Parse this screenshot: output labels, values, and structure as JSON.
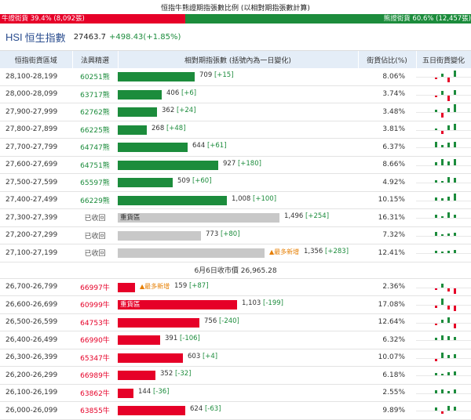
{
  "title": "恒指牛熊證期指張數比例 (以相對期指張數計算)",
  "ratio": {
    "bull_label": "牛證街貨 39.4% (8,092張)",
    "bull_pct": 39.4,
    "bear_label": "熊證街貨 60.6% (12,457張)"
  },
  "index": {
    "code": "HSI",
    "name": "恒生指數",
    "price": "27463.7",
    "change": "+498.43(+1.85%)"
  },
  "headers": [
    "恒指街貨區域",
    "法興精選",
    "相對期指張數 (括號內為一日變化)",
    "街貨佔比(%)",
    "五日街貨變化"
  ],
  "colors": {
    "bull": "#e60028",
    "bear": "#1c8c3c",
    "recovered": "#c8c8c8",
    "tag": "#e67e00"
  },
  "max_contracts": 1496,
  "bear_rows": [
    {
      "range": "28,100-28,199",
      "code": "60251熊",
      "value": 709,
      "change": "[+15]",
      "pct": "8.06%",
      "spark": [
        0,
        -2,
        4,
        -6,
        8
      ]
    },
    {
      "range": "28,000-28,099",
      "code": "63717熊",
      "value": 406,
      "change": "[+6]",
      "pct": "3.74%",
      "spark": [
        0,
        -2,
        5,
        -7,
        6
      ]
    },
    {
      "range": "27,900-27,999",
      "code": "62762熊",
      "value": 362,
      "change": "[+24]",
      "pct": "3.48%",
      "spark": [
        0,
        3,
        -6,
        5,
        10
      ]
    },
    {
      "range": "27,800-27,899",
      "code": "66225熊",
      "value": 268,
      "change": "[+48]",
      "pct": "3.81%",
      "spark": [
        0,
        2,
        -4,
        6,
        8
      ]
    },
    {
      "range": "27,700-27,799",
      "code": "64747熊",
      "value": 644,
      "change": "[+61]",
      "pct": "6.37%",
      "spark": [
        0,
        7,
        3,
        6,
        7
      ]
    },
    {
      "range": "27,600-27,699",
      "code": "64751熊",
      "value": 927,
      "change": "[+180]",
      "pct": "8.66%",
      "spark": [
        0,
        4,
        8,
        5,
        8
      ]
    },
    {
      "range": "27,500-27,599",
      "code": "65597熊",
      "value": 509,
      "change": "[+60]",
      "pct": "4.92%",
      "spark": [
        0,
        3,
        2,
        7,
        6
      ]
    },
    {
      "range": "27,400-27,499",
      "code": "66229熊",
      "value": 1008,
      "change": "[+100]",
      "pct": "10.15%",
      "spark": [
        0,
        4,
        3,
        5,
        9
      ]
    }
  ],
  "recovered_rows": [
    {
      "range": "27,300-27,399",
      "code": "已收回",
      "value": 1496,
      "change": "[+254]",
      "pct": "16.31%",
      "label": "重貨區",
      "spark": [
        0,
        4,
        2,
        7,
        4
      ]
    },
    {
      "range": "27,200-27,299",
      "code": "已收回",
      "value": 773,
      "change": "[+80]",
      "pct": "7.32%",
      "spark": [
        0,
        5,
        2,
        3,
        4
      ]
    },
    {
      "range": "27,100-27,199",
      "code": "已收回",
      "value": 1356,
      "change": "[+283]",
      "pct": "12.41%",
      "tag": "最多新增",
      "spark": [
        0,
        3,
        2,
        3,
        4
      ]
    }
  ],
  "separator": "6月6日收市價 26,965.28",
  "bull_rows": [
    {
      "range": "26,700-26,799",
      "code": "66997牛",
      "value": 159,
      "change": "[+87]",
      "pct": "2.36%",
      "tag": "最多新增",
      "spark": [
        0,
        -2,
        5,
        -4,
        -7
      ]
    },
    {
      "range": "26,600-26,699",
      "code": "60999牛",
      "value": 1103,
      "change": "[-199]",
      "pct": "17.08%",
      "label": "重貨區",
      "spark": [
        0,
        -3,
        8,
        -5,
        -7
      ]
    },
    {
      "range": "26,500-26,599",
      "code": "64753牛",
      "value": 756,
      "change": "[-240]",
      "pct": "12.64%",
      "spark": [
        0,
        -2,
        4,
        7,
        -6
      ]
    },
    {
      "range": "26,400-26,499",
      "code": "66990牛",
      "value": 391,
      "change": "[-106]",
      "pct": "6.32%",
      "spark": [
        0,
        3,
        6,
        5,
        4
      ]
    },
    {
      "range": "26,300-26,399",
      "code": "65347牛",
      "value": 603,
      "change": "[+4]",
      "pct": "10.07%",
      "spark": [
        0,
        -3,
        7,
        4,
        5
      ]
    },
    {
      "range": "26,200-26,299",
      "code": "66989牛",
      "value": 352,
      "change": "[-32]",
      "pct": "6.18%",
      "spark": [
        0,
        3,
        2,
        4,
        5
      ]
    },
    {
      "range": "26,100-26,199",
      "code": "63862牛",
      "value": 144,
      "change": "[-36]",
      "pct": "2.55%",
      "spark": [
        0,
        4,
        5,
        3,
        5
      ]
    },
    {
      "range": "26,000-26,099",
      "code": "63855牛",
      "value": 624,
      "change": "[-63]",
      "pct": "9.89%",
      "spark": [
        0,
        4,
        -3,
        6,
        5
      ]
    }
  ]
}
